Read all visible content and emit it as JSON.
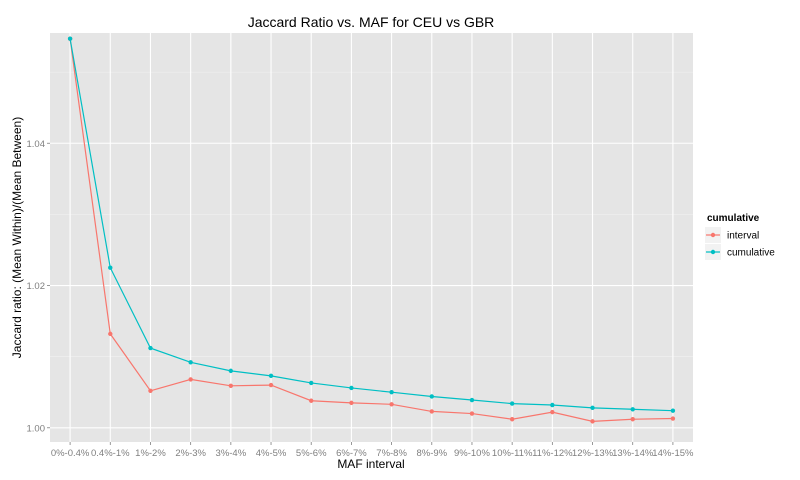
{
  "chart_data": {
    "type": "line",
    "title": "Jaccard Ratio vs. MAF for CEU vs GBR",
    "xlabel": "MAF interval",
    "ylabel": "Jaccard ratio: (Mean Within)/(Mean Between)",
    "categories": [
      "0%-0.4%",
      "0.4%-1%",
      "1%-2%",
      "2%-3%",
      "3%-4%",
      "4%-5%",
      "5%-6%",
      "6%-7%",
      "7%-8%",
      "8%-9%",
      "9%-10%",
      "10%-11%",
      "11%-12%",
      "12%-13%",
      "13%-14%",
      "14%-15%"
    ],
    "ylim": [
      0.998,
      1.0555
    ],
    "yticks": [
      1.0,
      1.02,
      1.04
    ],
    "ytick_labels": [
      "1.00",
      "1.02",
      "1.04"
    ],
    "grid": true,
    "legend": {
      "title": "cumulative",
      "placement": "right"
    },
    "series": [
      {
        "name": "interval",
        "color": "#F8766D",
        "values": [
          1.0547,
          1.0132,
          1.0052,
          1.0068,
          1.0059,
          1.006,
          1.0038,
          1.0035,
          1.0033,
          1.0023,
          1.002,
          1.0012,
          1.0022,
          1.0009,
          1.0012,
          1.0013
        ]
      },
      {
        "name": "cumulative",
        "color": "#00BFC4",
        "values": [
          1.0547,
          1.0225,
          1.0112,
          1.0092,
          1.008,
          1.0073,
          1.0063,
          1.0056,
          1.005,
          1.0044,
          1.0039,
          1.0034,
          1.0032,
          1.0028,
          1.0026,
          1.0024
        ]
      }
    ]
  }
}
